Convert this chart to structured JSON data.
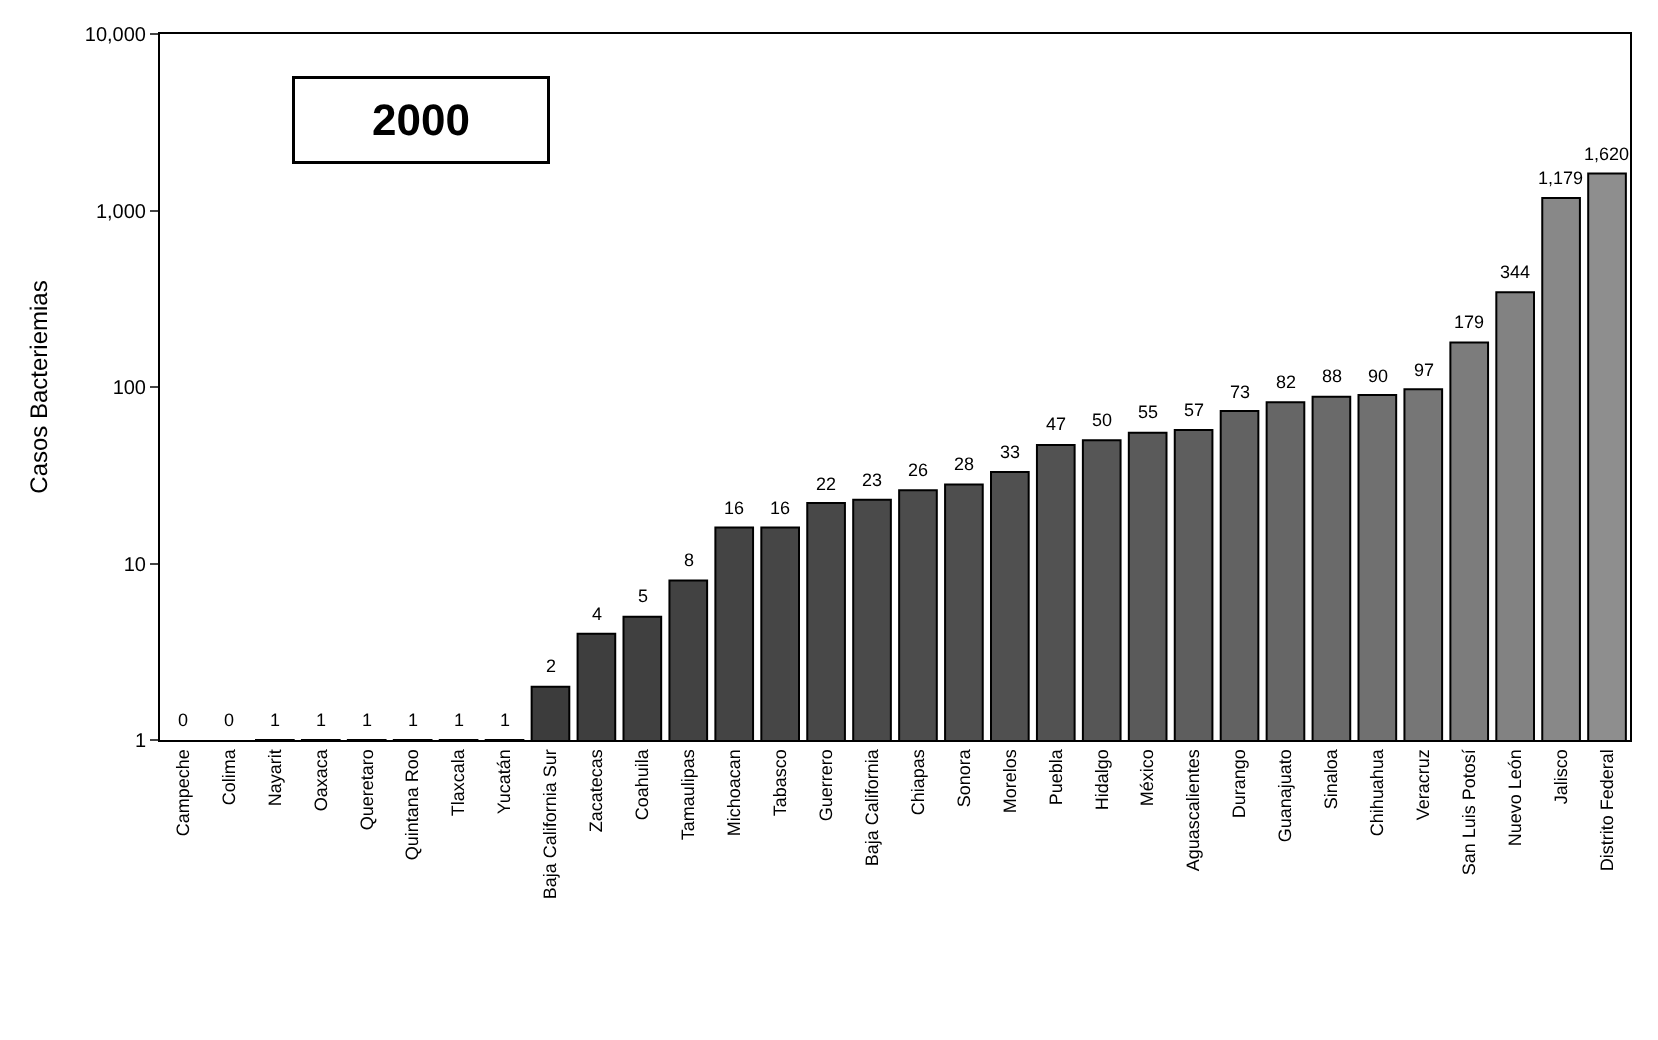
{
  "chart_data": {
    "type": "bar",
    "title": "2000",
    "ylabel": "Casos Bacteriemias",
    "categories": [
      "Campeche",
      "Colima",
      "Nayarit",
      "Oaxaca",
      "Queretaro",
      "Quintana Roo",
      "Tlaxcala",
      "Yucatán",
      "Baja California Sur",
      "Zacatecas",
      "Coahuila",
      "Tamaulipas",
      "Michoacan",
      "Tabasco",
      "Guerrero",
      "Baja California",
      "Chiapas",
      "Sonora",
      "Morelos",
      "Puebla",
      "Hidalgo",
      "México",
      "Aguascalientes",
      "Durango",
      "Guanajuato",
      "Sinaloa",
      "Chihuahua",
      "Veracruz",
      "San Luis Potosí",
      "Nuevo León",
      "Jalisco",
      "Distrito Federal"
    ],
    "values": [
      null,
      null,
      1,
      1,
      1,
      1,
      1,
      1,
      2,
      4,
      5,
      8,
      16,
      16,
      22,
      23,
      26,
      28,
      33,
      47,
      50,
      55,
      57,
      73,
      82,
      88,
      90,
      97,
      179,
      344,
      1179,
      1620
    ],
    "value_labels": [
      "0",
      "0",
      "1",
      "1",
      "1",
      "1",
      "1",
      "1",
      "2",
      "4",
      "5",
      "8",
      "16",
      "16",
      "22",
      "23",
      "26",
      "28",
      "33",
      "47",
      "50",
      "55",
      "57",
      "73",
      "82",
      "88",
      "90",
      "97",
      "179",
      "344",
      "1,179",
      "1,620"
    ],
    "colors": [
      "#3a3a3a",
      "#3a3a3a",
      "#3a3a3a",
      "#3a3a3a",
      "#3a3a3a",
      "#3a3a3a",
      "#3a3a3a",
      "#3a3a3a",
      "#3c3c3c",
      "#3e3e3e",
      "#404040",
      "#424242",
      "#444444",
      "#464646",
      "#484848",
      "#4a4a4a",
      "#4c4c4c",
      "#4e4e4e",
      "#505050",
      "#525252",
      "#565656",
      "#5a5a5a",
      "#5e5e5e",
      "#626262",
      "#666666",
      "#6a6a6a",
      "#707070",
      "#767676",
      "#7c7c7c",
      "#828282",
      "#888888",
      "#8e8e8e"
    ],
    "log": true,
    "ylim": [
      1,
      10000
    ],
    "yticks": [
      1,
      10,
      100,
      {
        "value": 1000,
        "label": "1,000"
      },
      {
        "value": 10000,
        "label": "10,000"
      }
    ],
    "legend": false
  }
}
